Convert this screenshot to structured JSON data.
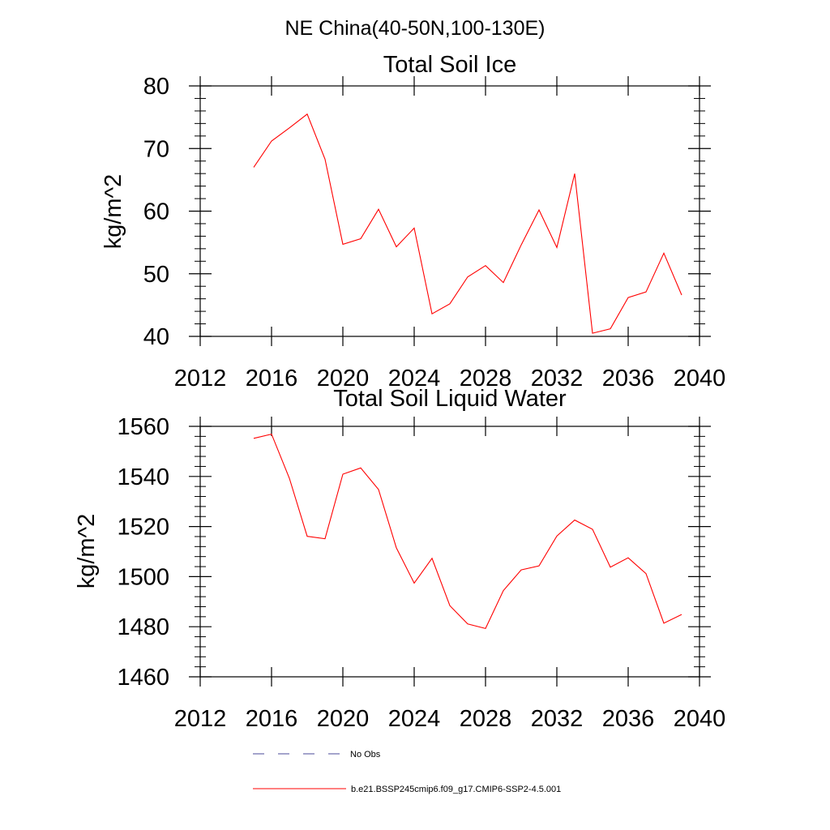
{
  "figure": {
    "suptitle": "NE China(40-50N,100-130E)"
  },
  "colors": {
    "model_line": "#ff0000",
    "obs_line": "#4a4a9a",
    "axis": "#000000"
  },
  "chart_data": [
    {
      "type": "line",
      "title": "Total Soil Ice",
      "xlabel": "",
      "ylabel": "kg/m^2",
      "xlim": [
        2012,
        2040
      ],
      "ylim": [
        40,
        80
      ],
      "x_ticks": [
        "2012",
        "2016",
        "2020",
        "2024",
        "2028",
        "2032",
        "2036",
        "2040"
      ],
      "y_ticks": [
        "40",
        "50",
        "60",
        "70",
        "80"
      ],
      "grid": false,
      "series": [
        {
          "name": "b.e21.BSSP245cmip6.f09_g17.CMIP6-SSP2-4.5.001",
          "x": [
            2015,
            2016,
            2017,
            2018,
            2019,
            2020,
            2021,
            2022,
            2023,
            2024,
            2025,
            2026,
            2027,
            2028,
            2029,
            2030,
            2031,
            2032,
            2033,
            2034,
            2035,
            2036,
            2037,
            2038,
            2039
          ],
          "values": [
            67.0,
            71.2,
            73.3,
            75.5,
            68.3,
            54.7,
            55.6,
            60.3,
            54.3,
            57.3,
            43.6,
            45.2,
            49.5,
            51.3,
            48.6,
            54.6,
            60.2,
            54.2,
            66.0,
            40.5,
            41.2,
            46.2,
            47.1,
            53.3,
            46.6
          ]
        }
      ]
    },
    {
      "type": "line",
      "title": "Total Soil Liquid Water",
      "xlabel": "",
      "ylabel": "kg/m^2",
      "xlim": [
        2012,
        2040
      ],
      "ylim": [
        1460,
        1560
      ],
      "x_ticks": [
        "2012",
        "2016",
        "2020",
        "2024",
        "2028",
        "2032",
        "2036",
        "2040"
      ],
      "y_ticks": [
        "1460",
        "1480",
        "1500",
        "1520",
        "1540",
        "1560"
      ],
      "grid": false,
      "series": [
        {
          "name": "b.e21.BSSP245cmip6.f09_g17.CMIP6-SSP2-4.5.001",
          "x": [
            2015,
            2016,
            2017,
            2018,
            2019,
            2020,
            2021,
            2022,
            2023,
            2024,
            2025,
            2026,
            2027,
            2028,
            2029,
            2030,
            2031,
            2032,
            2033,
            2034,
            2035,
            2036,
            2037,
            2038,
            2039
          ],
          "values": [
            1555.2,
            1556.9,
            1539.3,
            1516.1,
            1515.1,
            1540.9,
            1543.4,
            1534.8,
            1511.5,
            1497.4,
            1507.3,
            1488.4,
            1481.1,
            1479.3,
            1494.4,
            1502.7,
            1504.3,
            1516.2,
            1522.6,
            1518.9,
            1503.8,
            1507.5,
            1501.2,
            1481.4,
            1484.9
          ]
        }
      ]
    }
  ],
  "legend": {
    "placement": "bottom-center",
    "items": [
      {
        "label": "No Obs",
        "style": "dashed"
      },
      {
        "label": "b.e21.BSSP245cmip6.f09_g17.CMIP6-SSP2-4.5.001",
        "style": "solid"
      }
    ]
  }
}
